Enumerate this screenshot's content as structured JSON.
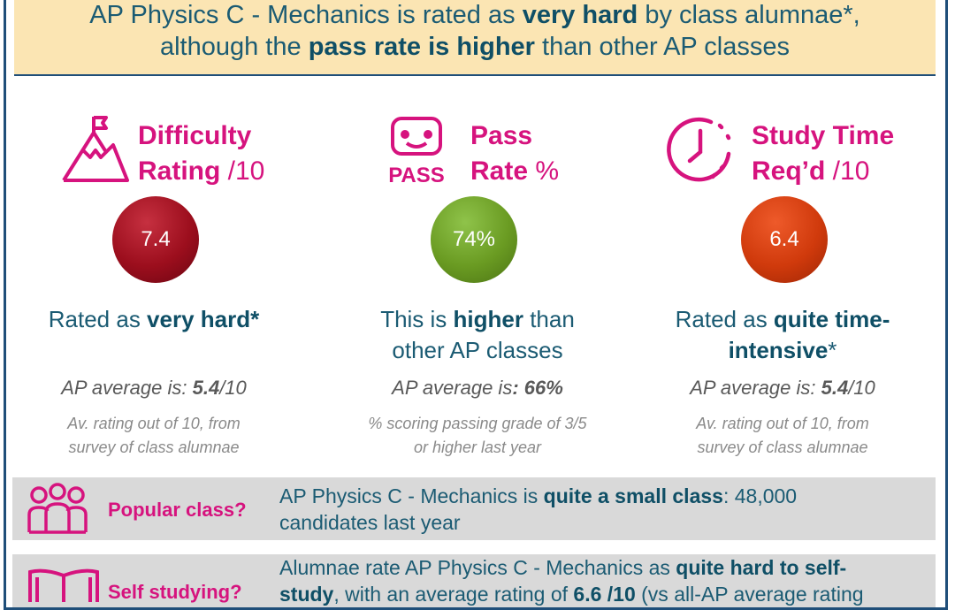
{
  "banner": {
    "line1_pre": "AP Physics C - Mechanics is rated as ",
    "line1_bold": "very hard",
    "line1_post": " by class alumnae*,",
    "line2_pre": "although the ",
    "line2_bold": "pass rate is higher",
    "line2_post": " than other AP classes"
  },
  "metrics": [
    {
      "title_line1": "Difficulty",
      "title_line2": "Rating",
      "title_unit": " /10",
      "icon": "mountain-flag-icon",
      "value": "7.4",
      "desc_pre": "Rated as ",
      "desc_bold": "very hard*",
      "desc_post": "",
      "avg_pre": "AP average is: ",
      "avg_bold": "5.4",
      "avg_post": "/10",
      "note_line1": "Av. rating out of 10, from",
      "note_line2": "survey of class alumnae",
      "color": "#9c0e1d"
    },
    {
      "title_line1": "Pass",
      "title_line2": "Rate",
      "title_unit": " %",
      "icon": "pass-badge-icon",
      "icon_text": "PASS",
      "value": "74%",
      "desc_line1_pre": "This is ",
      "desc_line1_bold": "higher",
      "desc_line1_post": " than",
      "desc_line2": "other AP classes",
      "avg_pre": "AP average is",
      "avg_bold": ": 66%",
      "note_line1": "% scoring passing grade of 3/5",
      "note_line2": "or higher last year",
      "color": "#6a9b22"
    },
    {
      "title_line1": "Study Time",
      "title_line2": "Req’d",
      "title_unit": " /10",
      "icon": "clock-icon",
      "value": "6.4",
      "desc_line1_pre": "Rated as ",
      "desc_line1_bold": "quite time-",
      "desc_line2_bold": "intensive",
      "desc_line2_post": "*",
      "avg_pre": "AP average is: ",
      "avg_bold": "5.4",
      "avg_post": "/10",
      "note_line1": "Av. rating out of 10, from",
      "note_line2": "survey of class alumnae",
      "color": "#d03a0c"
    }
  ],
  "popular": {
    "icon": "people-group-icon",
    "label": "Popular class?",
    "text_pre": "AP Physics C - Mechanics is ",
    "text_bold": "quite a small class",
    "text_post": ": 48,000",
    "text_line2": "candidates last year"
  },
  "self_study": {
    "icon": "open-book-icon",
    "label": "Self studying?",
    "text_line1_pre": "Alumnae rate AP Physics C - Mechanics as ",
    "text_line1_bold": "quite hard to self-",
    "text_line2_bold": "study",
    "text_line2_mid": ", with an average rating of ",
    "text_line2_bold2": "6.6 /10",
    "text_line2_post": " (vs all-AP average rating"
  },
  "colors": {
    "accent": "#d6137e",
    "navy": "#1f4e79",
    "banner_bg": "#fbe5b3",
    "text": "#1b5b73"
  }
}
